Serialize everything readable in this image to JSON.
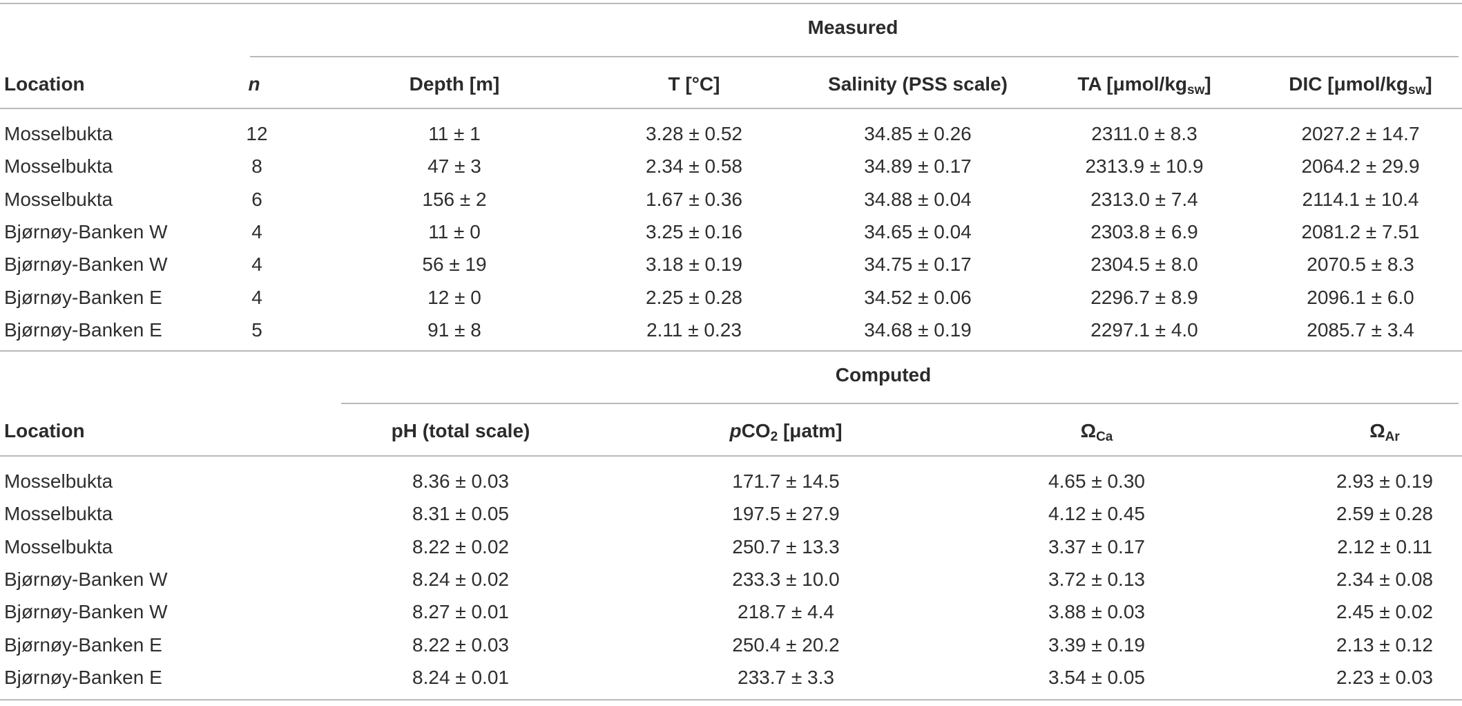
{
  "measured": {
    "group_title": "Measured",
    "headers": {
      "location": "Location",
      "n": "n",
      "depth": "Depth [m]",
      "temp": "T [°C]",
      "salinity": "Salinity (PSS scale)",
      "ta_main": "TA [μmol/kg",
      "ta_sub": "sw",
      "ta_end": "]",
      "dic_main": "DIC [μmol/kg",
      "dic_sub": "sw",
      "dic_end": "]"
    },
    "rows": [
      {
        "location": "Mosselbukta",
        "n": "12",
        "depth": "11 ± 1",
        "temp": "3.28 ± 0.52",
        "salinity": "34.85 ± 0.26",
        "ta": "2311.0 ± 8.3",
        "dic": "2027.2 ± 14.7"
      },
      {
        "location": "Mosselbukta",
        "n": "8",
        "depth": "47 ± 3",
        "temp": "2.34 ± 0.58",
        "salinity": "34.89 ± 0.17",
        "ta": "2313.9 ± 10.9",
        "dic": "2064.2 ± 29.9"
      },
      {
        "location": "Mosselbukta",
        "n": "6",
        "depth": "156 ± 2",
        "temp": "1.67 ± 0.36",
        "salinity": "34.88 ± 0.04",
        "ta": "2313.0 ± 7.4",
        "dic": "2114.1 ± 10.4"
      },
      {
        "location": "Bjørnøy-Banken W",
        "n": "4",
        "depth": "11 ± 0",
        "temp": "3.25 ± 0.16",
        "salinity": "34.65 ± 0.04",
        "ta": "2303.8 ± 6.9",
        "dic": "2081.2 ± 7.51"
      },
      {
        "location": "Bjørnøy-Banken W",
        "n": "4",
        "depth": "56 ± 19",
        "temp": "3.18 ± 0.19",
        "salinity": "34.75 ± 0.17",
        "ta": "2304.5 ± 8.0",
        "dic": "2070.5 ± 8.3"
      },
      {
        "location": "Bjørnøy-Banken E",
        "n": "4",
        "depth": "12 ± 0",
        "temp": "2.25 ± 0.28",
        "salinity": "34.52 ± 0.06",
        "ta": "2296.7 ± 8.9",
        "dic": "2096.1 ± 6.0"
      },
      {
        "location": "Bjørnøy-Banken E",
        "n": "5",
        "depth": "91 ± 8",
        "temp": "2.11 ± 0.23",
        "salinity": "34.68 ± 0.19",
        "ta": "2297.1 ± 4.0",
        "dic": "2085.7 ± 3.4"
      }
    ]
  },
  "computed": {
    "group_title": "Computed",
    "headers": {
      "location": "Location",
      "ph": "pH (total scale)",
      "pco2_p": "p",
      "pco2_co": "CO",
      "pco2_sub": "2",
      "pco2_unit": " [μatm]",
      "omega_ca": "Ω",
      "omega_ca_sub": "Ca",
      "omega_ar": "Ω",
      "omega_ar_sub": "Ar"
    },
    "rows": [
      {
        "location": "Mosselbukta",
        "ph": "8.36 ± 0.03",
        "pco2": "171.7 ± 14.5",
        "omega_ca": "4.65 ± 0.30",
        "omega_ar": "2.93 ± 0.19"
      },
      {
        "location": "Mosselbukta",
        "ph": "8.31 ± 0.05",
        "pco2": "197.5 ± 27.9",
        "omega_ca": "4.12 ± 0.45",
        "omega_ar": "2.59 ± 0.28"
      },
      {
        "location": "Mosselbukta",
        "ph": "8.22 ± 0.02",
        "pco2": "250.7 ± 13.3",
        "omega_ca": "3.37 ± 0.17",
        "omega_ar": "2.12 ± 0.11"
      },
      {
        "location": "Bjørnøy-Banken W",
        "ph": "8.24 ± 0.02",
        "pco2": "233.3 ± 10.0",
        "omega_ca": "3.72 ± 0.13",
        "omega_ar": "2.34 ± 0.08"
      },
      {
        "location": "Bjørnøy-Banken W",
        "ph": "8.27 ± 0.01",
        "pco2": "218.7 ± 4.4",
        "omega_ca": "3.88 ± 0.03",
        "omega_ar": "2.45 ± 0.02"
      },
      {
        "location": "Bjørnøy-Banken E",
        "ph": "8.22 ± 0.03",
        "pco2": "250.4 ± 20.2",
        "omega_ca": "3.39 ± 0.19",
        "omega_ar": "2.13 ± 0.12"
      },
      {
        "location": "Bjørnøy-Banken E",
        "ph": "8.24 ± 0.01",
        "pco2": "233.7 ± 3.3",
        "omega_ca": "3.54 ± 0.05",
        "omega_ar": "2.23 ± 0.03"
      }
    ]
  }
}
